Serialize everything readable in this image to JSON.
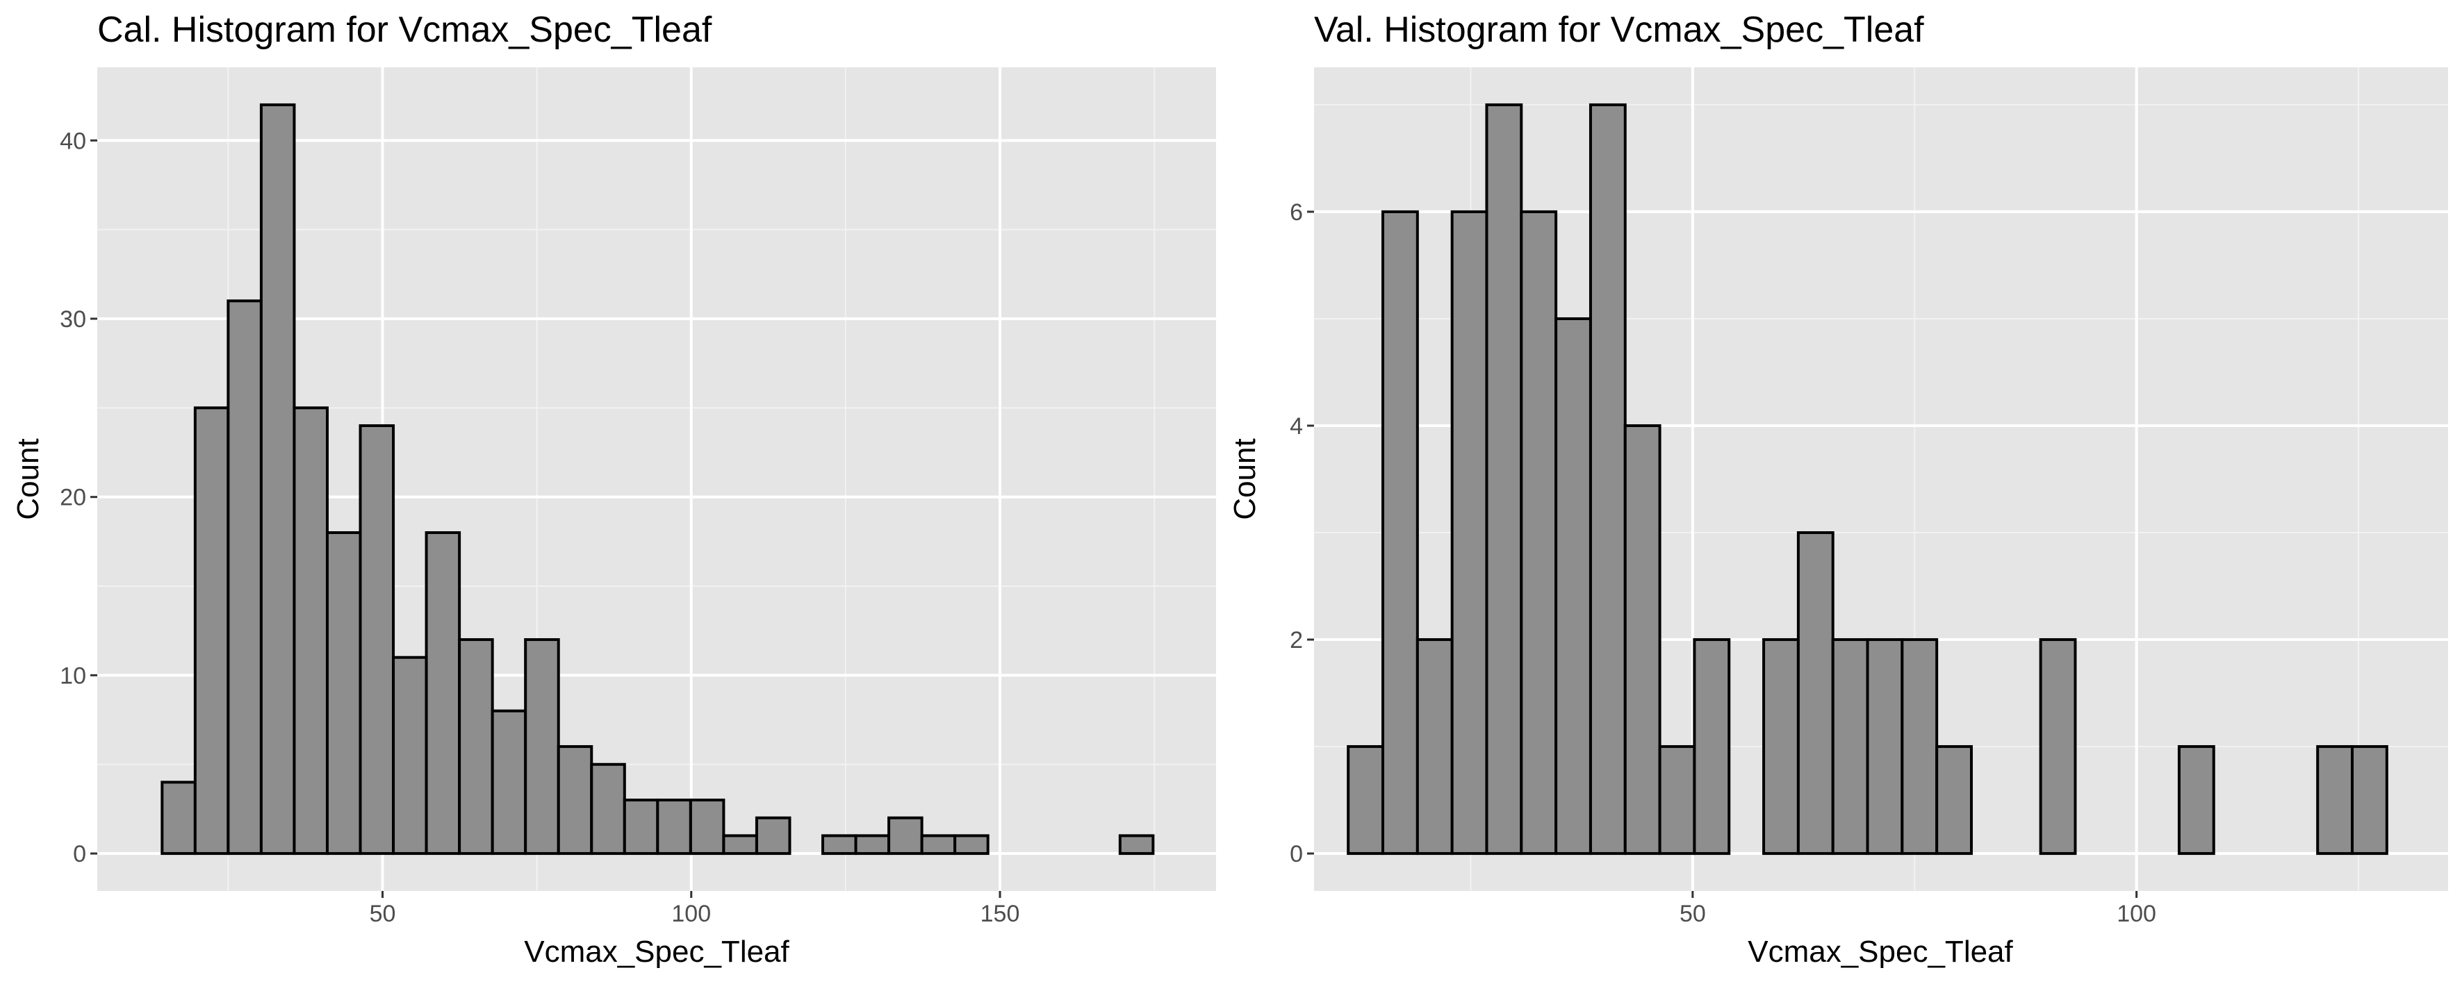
{
  "chart_data": [
    {
      "type": "bar",
      "title": "Cal. Histogram for Vcmax_Spec_Tleaf",
      "xlabel": "Vcmax_Spec_Tleaf",
      "ylabel": "Count",
      "bin_start": 14.3,
      "bin_width": 5.35,
      "values": [
        4,
        25,
        31,
        42,
        25,
        18,
        24,
        11,
        18,
        12,
        8,
        12,
        6,
        5,
        3,
        3,
        3,
        1,
        2,
        0,
        1,
        1,
        2,
        1,
        1,
        0,
        0,
        0,
        0,
        1
      ],
      "xlim": [
        3.8,
        185
      ],
      "ylim": [
        -2.1,
        44.1
      ],
      "x_ticks": [
        50,
        100,
        150
      ],
      "x_tick_labels": [
        "50",
        "100",
        "150"
      ],
      "y_ticks": [
        0,
        10,
        20,
        30,
        40
      ],
      "y_tick_labels": [
        "0",
        "10",
        "20",
        "30",
        "40"
      ],
      "grid": true,
      "fill_color": "#8e8e8e",
      "edge_color": "#000000",
      "panel_color": "#e5e5e5"
    },
    {
      "type": "bar",
      "title": "Val. Histogram for Vcmax_Spec_Tleaf",
      "xlabel": "Vcmax_Spec_Tleaf",
      "ylabel": "Count",
      "bin_start": 11.2,
      "bin_width": 3.9,
      "values": [
        1,
        6,
        2,
        6,
        7,
        6,
        5,
        7,
        4,
        1,
        2,
        0,
        2,
        3,
        2,
        2,
        2,
        1,
        0,
        0,
        2,
        0,
        0,
        0,
        1,
        0,
        0,
        0,
        1,
        1
      ],
      "xlim": [
        7.35,
        135.1
      ],
      "ylim": [
        -0.35,
        7.35
      ],
      "x_ticks": [
        50,
        100
      ],
      "x_tick_labels": [
        "50",
        "100"
      ],
      "y_ticks": [
        0,
        2,
        4,
        6
      ],
      "y_tick_labels": [
        "0",
        "2",
        "4",
        "6"
      ],
      "grid": true,
      "fill_color": "#8e8e8e",
      "edge_color": "#000000",
      "panel_color": "#e5e5e5"
    }
  ]
}
